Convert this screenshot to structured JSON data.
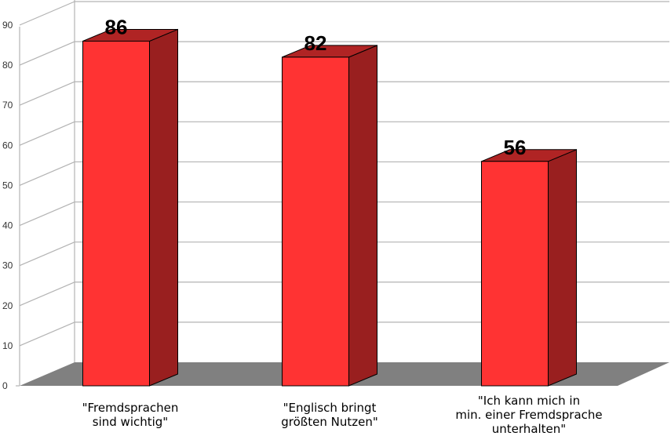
{
  "chart_data": {
    "type": "bar",
    "categories": [
      "\"Fremdsprachen\nsind wichtig\"",
      "\"Englisch bringt\ngrößten Nutzen\"",
      "\"Ich kann mich in\nmin. einer Fremdsprache\nunterhalten\""
    ],
    "values": [
      86,
      82,
      56
    ],
    "data_labels": [
      "86",
      "82",
      "56"
    ],
    "y_ticks": [
      "0",
      "10",
      "20",
      "30",
      "40",
      "50",
      "60",
      "70",
      "80",
      "90"
    ],
    "ylim": [
      0,
      90
    ],
    "grid": true,
    "legend": "none",
    "colors": {
      "bar_front": "#ff3333",
      "bar_side": "#991f1f",
      "bar_top": "#b02424",
      "floor": "#808080",
      "grid": "#b3b3b3"
    }
  }
}
